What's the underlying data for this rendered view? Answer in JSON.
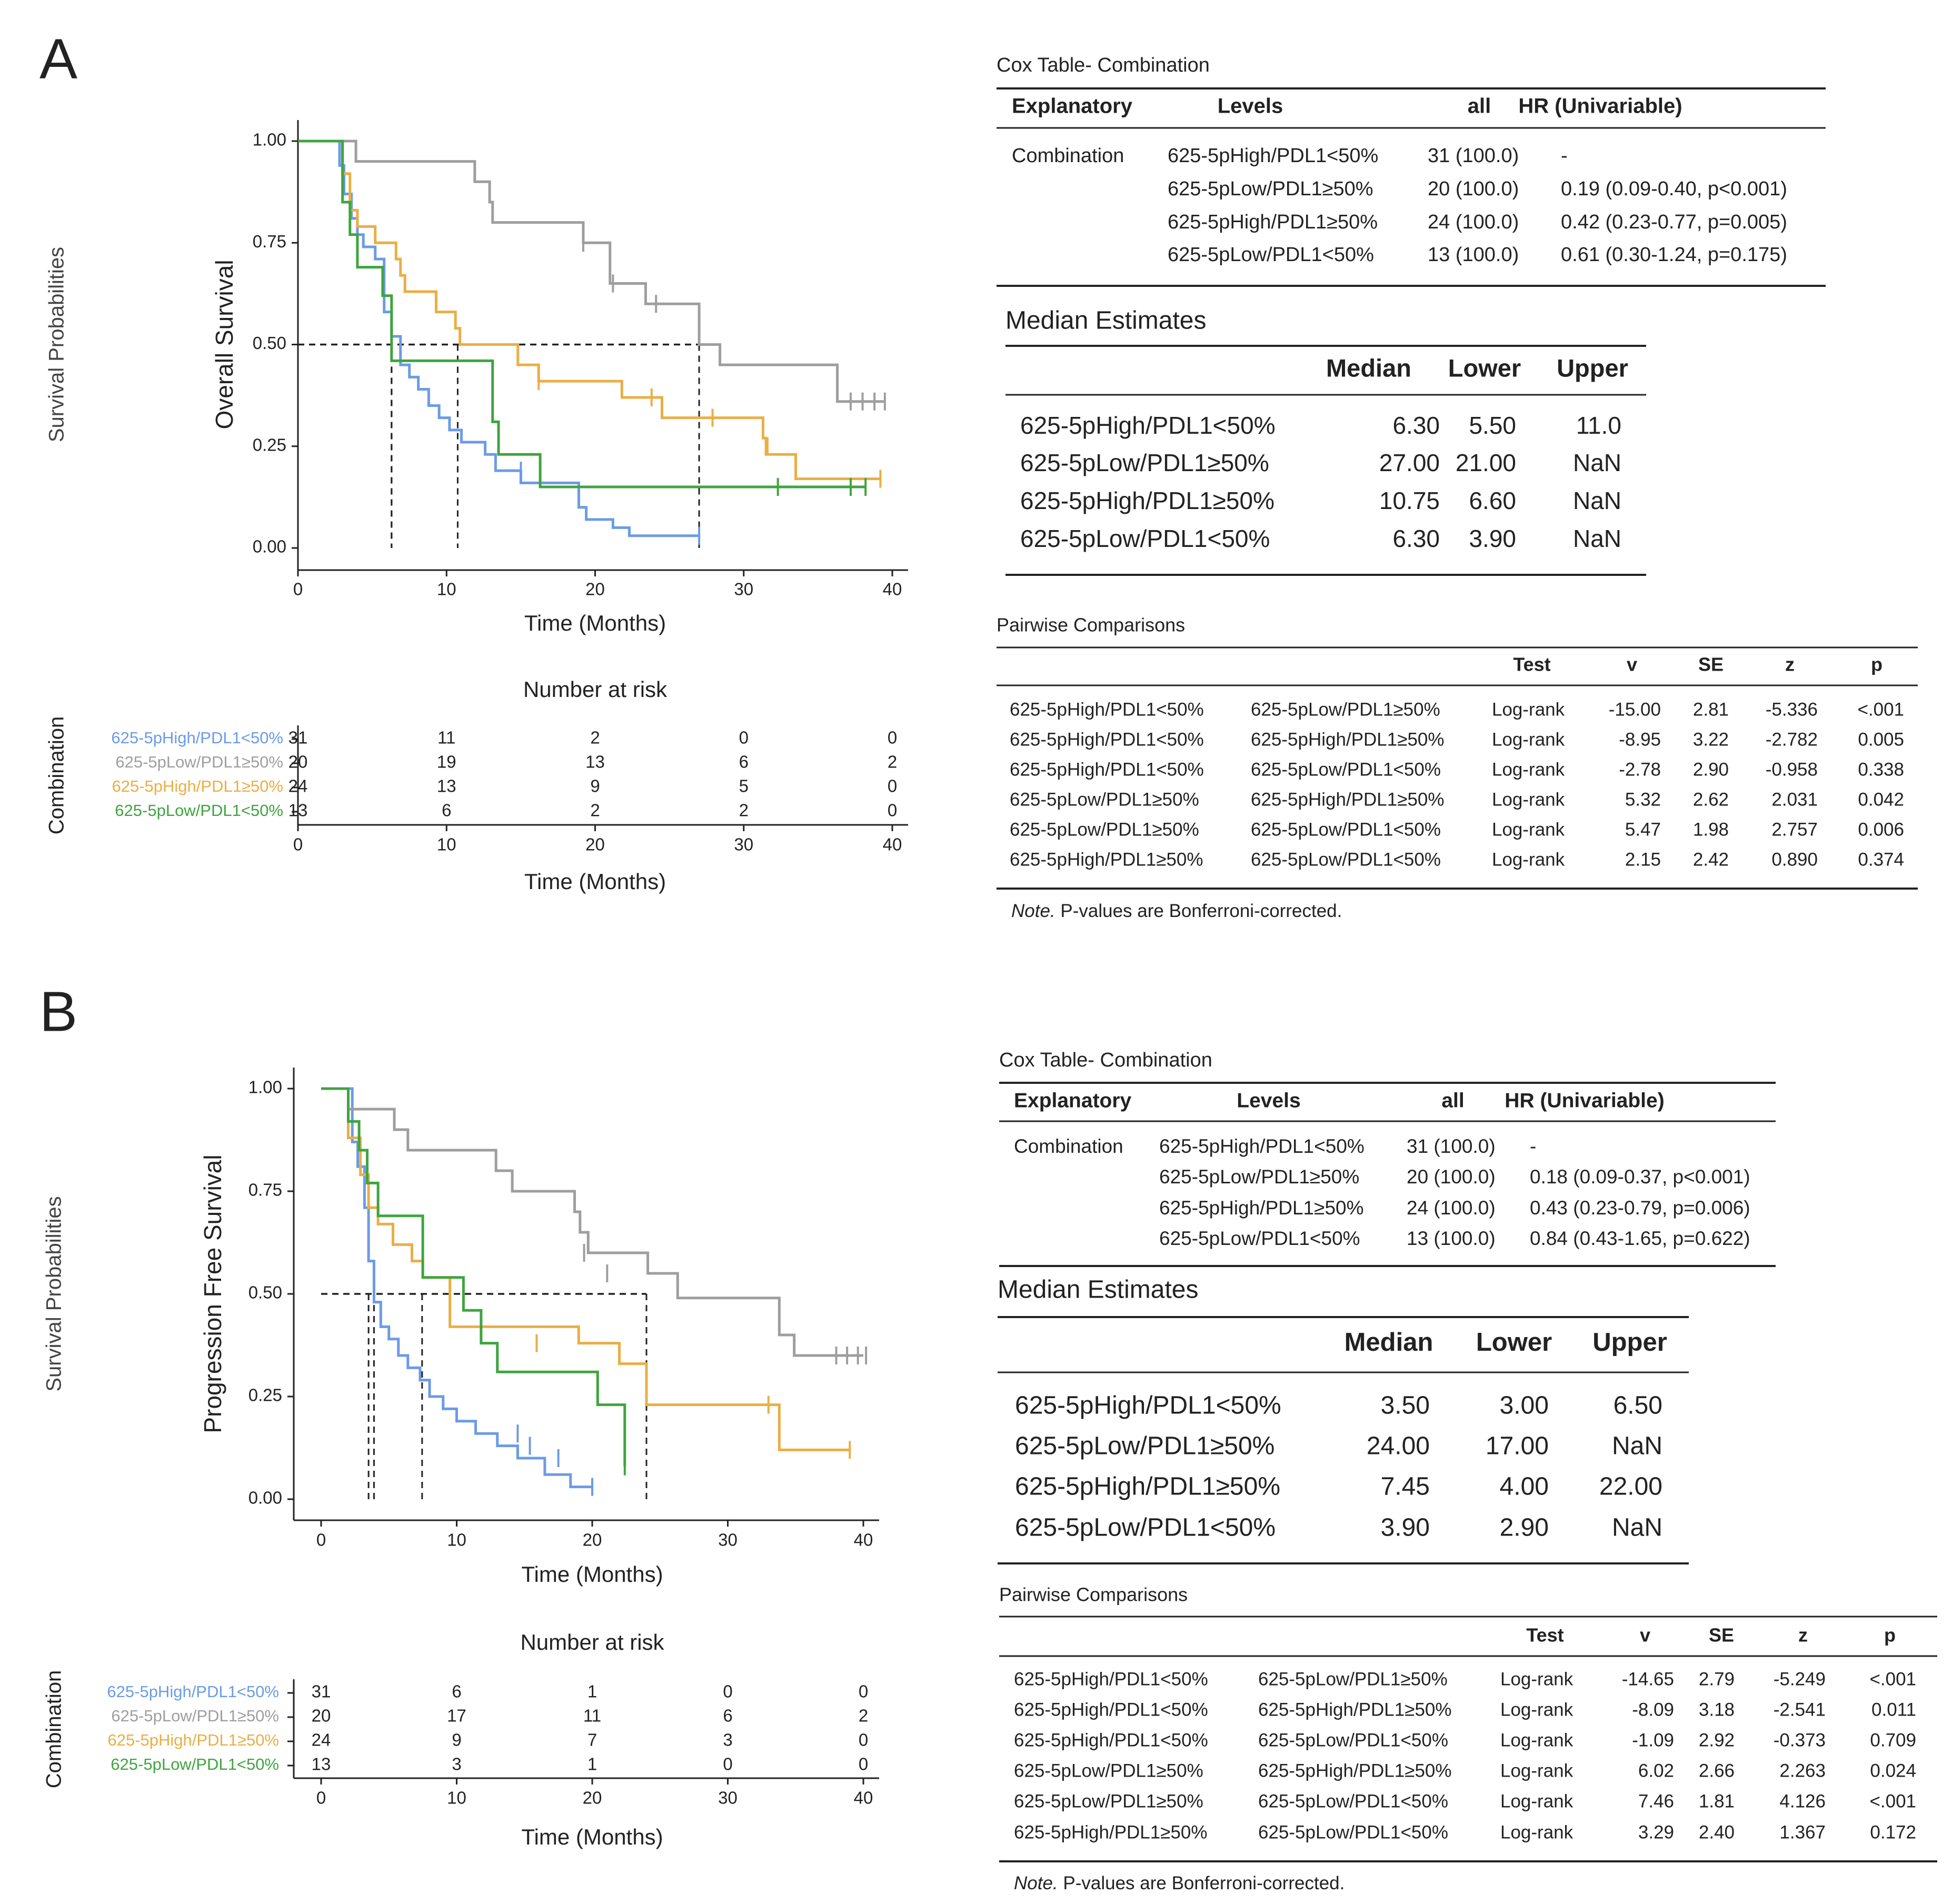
{
  "colors": {
    "g1": "#6b9be6",
    "g2": "#9e9e9e",
    "g3": "#eaae44",
    "g4": "#3fa43f",
    "axis": "#222222",
    "text": "#222222"
  },
  "chart_data": [
    {
      "type": "line",
      "panel": "A",
      "xlabel": "Time (Months)",
      "ylabel": "Overall Survival",
      "outer_ylabel": "Survival Probabilities",
      "xlim": [
        0,
        40
      ],
      "ylim": [
        0,
        1
      ],
      "x_ticks": [
        "0",
        "10",
        "20",
        "30",
        "40"
      ],
      "y_ticks": [
        "0.00",
        "0.25",
        "0.50",
        "0.75",
        "1.00"
      ],
      "medians": [
        6.3,
        27.0,
        10.75,
        6.3
      ],
      "series": [
        {
          "name": "625-5pHigh/PDL1<50%",
          "color_key": "g1",
          "x": [
            0,
            2.8,
            3.1,
            3.6,
            4,
            4.4,
            5.2,
            5.8,
            6.3,
            6.9,
            7.5,
            8.1,
            8.8,
            9.5,
            10.2,
            11,
            12.6,
            13.3,
            15,
            16.3,
            18.9,
            19.4,
            21.2,
            22.3,
            27
          ],
          "y": [
            1,
            0.94,
            0.87,
            0.81,
            0.77,
            0.74,
            0.71,
            0.58,
            0.52,
            0.45,
            0.42,
            0.39,
            0.35,
            0.32,
            0.29,
            0.26,
            0.23,
            0.19,
            0.16,
            0.16,
            0.1,
            0.07,
            0.05,
            0.03,
            0.03
          ],
          "censor_x": [
            15,
            27
          ],
          "censor_y": [
            0.19,
            0.03
          ]
        },
        {
          "name": "625-5pLow/PDL1≥50%",
          "color_key": "g2",
          "x": [
            0,
            3.9,
            11.9,
            12.9,
            13.1,
            14,
            19.2,
            21,
            23.4,
            27,
            28.4,
            36.3,
            39.5
          ],
          "y": [
            1,
            0.95,
            0.9,
            0.85,
            0.8,
            0.8,
            0.75,
            0.65,
            0.6,
            0.5,
            0.45,
            0.36,
            0.36
          ],
          "censor_x": [
            19.2,
            21.2,
            24.1,
            37.2,
            38.0,
            38.8,
            39.5
          ],
          "censor_y": [
            0.75,
            0.65,
            0.6,
            0.36,
            0.36,
            0.36,
            0.36
          ]
        },
        {
          "name": "625-5pHigh/PDL1≥50%",
          "color_key": "g3",
          "x": [
            0,
            3.0,
            3.5,
            4,
            5.2,
            6.6,
            6.9,
            7.2,
            9.3,
            10.6,
            10.9,
            14.8,
            16.2,
            21.8,
            24.5,
            27.1,
            31.3,
            31.5,
            33.5,
            39.2
          ],
          "y": [
            1,
            0.92,
            0.83,
            0.79,
            0.75,
            0.71,
            0.67,
            0.63,
            0.58,
            0.54,
            0.5,
            0.45,
            0.41,
            0.37,
            0.32,
            0.32,
            0.27,
            0.23,
            0.17,
            0.17
          ],
          "censor_x": [
            16.2,
            23.8,
            27.9,
            31.6,
            39.2
          ],
          "censor_y": [
            0.41,
            0.37,
            0.32,
            0.25,
            0.17
          ]
        },
        {
          "name": "625-5pLow/PDL1<50%",
          "color_key": "g4",
          "x": [
            0,
            3,
            3.5,
            4,
            5.7,
            6.3,
            10.6,
            13.1,
            13.5,
            16.3,
            32.3,
            38.2
          ],
          "y": [
            1,
            0.85,
            0.77,
            0.69,
            0.62,
            0.46,
            0.46,
            0.31,
            0.23,
            0.15,
            0.15,
            0.15
          ],
          "censor_x": [
            32.3,
            37.2,
            38.2
          ],
          "censor_y": [
            0.15,
            0.15,
            0.15
          ]
        }
      ],
      "risk_table": {
        "title": "Number at risk",
        "ylabel": "Combination",
        "xlabel": "Time (Months)",
        "groups": [
          "625-5pHigh/PDL1<50%",
          "625-5pLow/PDL1≥50%",
          "625-5pHigh/PDL1≥50%",
          "625-5pLow/PDL1<50%"
        ],
        "values": [
          [
            "31",
            "11",
            "2",
            "0",
            "0"
          ],
          [
            "20",
            "19",
            "13",
            "6",
            "2"
          ],
          [
            "24",
            "13",
            "9",
            "5",
            "0"
          ],
          [
            "13",
            "6",
            "2",
            "2",
            "0"
          ]
        ]
      }
    },
    {
      "type": "line",
      "panel": "B",
      "xlabel": "Time (Months)",
      "ylabel": "Progression Free Survival",
      "outer_ylabel": "Survival Probabilities",
      "xlim": [
        0,
        40
      ],
      "ylim": [
        0,
        1
      ],
      "x_ticks": [
        "0",
        "10",
        "20",
        "30",
        "40"
      ],
      "y_ticks": [
        "0.00",
        "0.25",
        "0.50",
        "0.75",
        "1.00"
      ],
      "medians": [
        3.5,
        24.0,
        7.45,
        3.9
      ],
      "series": [
        {
          "name": "625-5pHigh/PDL1<50%",
          "color_key": "g1",
          "x": [
            0,
            2.3,
            2.7,
            3.2,
            3.5,
            3.9,
            4.4,
            5,
            5.7,
            6.4,
            7.3,
            8,
            9,
            10,
            11.4,
            13,
            14.5,
            16.5,
            18.4,
            20
          ],
          "y": [
            1,
            0.87,
            0.81,
            0.71,
            0.58,
            0.48,
            0.42,
            0.39,
            0.35,
            0.32,
            0.29,
            0.25,
            0.22,
            0.19,
            0.16,
            0.13,
            0.1,
            0.06,
            0.03,
            0.03
          ],
          "censor_x": [
            14.5,
            15.4,
            17.5,
            20
          ],
          "censor_y": [
            0.16,
            0.13,
            0.1,
            0.03
          ]
        },
        {
          "name": "625-5pLow/PDL1≥50%",
          "color_key": "g2",
          "x": [
            0,
            2,
            5.4,
            6.4,
            12.9,
            14.1,
            18.7,
            19.1,
            19.7,
            24.1,
            26.3,
            33.8,
            34.9,
            40
          ],
          "y": [
            1,
            0.95,
            0.9,
            0.85,
            0.8,
            0.75,
            0.7,
            0.65,
            0.6,
            0.55,
            0.49,
            0.4,
            0.35,
            0.35
          ],
          "censor_x": [
            19.4,
            21.1,
            38.0,
            38.8,
            39.6,
            40.2
          ],
          "censor_y": [
            0.6,
            0.55,
            0.35,
            0.35,
            0.35,
            0.35
          ]
        },
        {
          "name": "625-5pHigh/PDL1≥50%",
          "color_key": "g3",
          "x": [
            0,
            2,
            2.9,
            3.5,
            4.2,
            5.3,
            6.7,
            7.5,
            9.5,
            19,
            22,
            24,
            33.8,
            39
          ],
          "y": [
            1,
            0.88,
            0.79,
            0.71,
            0.67,
            0.62,
            0.58,
            0.54,
            0.42,
            0.38,
            0.33,
            0.23,
            0.12,
            0.12
          ],
          "censor_x": [
            15.9,
            33,
            39
          ],
          "censor_y": [
            0.38,
            0.23,
            0.12
          ]
        },
        {
          "name": "625-5pLow/PDL1<50%",
          "color_key": "g4",
          "x": [
            0,
            2,
            2.8,
            3.4,
            4.2,
            7.5,
            10.5,
            11.8,
            13,
            20.4,
            22.4
          ],
          "y": [
            1,
            0.92,
            0.85,
            0.77,
            0.69,
            0.54,
            0.46,
            0.38,
            0.31,
            0.23,
            0.08
          ],
          "censor_x": [
            22.4
          ],
          "censor_y": [
            0.08
          ]
        }
      ],
      "risk_table": {
        "title": "Number at risk",
        "ylabel": "Combination",
        "xlabel": "Time (Months)",
        "groups": [
          "625-5pHigh/PDL1<50%",
          "625-5pLow/PDL1≥50%",
          "625-5pHigh/PDL1≥50%",
          "625-5pLow/PDL1<50%"
        ],
        "values": [
          [
            "31",
            "6",
            "1",
            "0",
            "0"
          ],
          [
            "20",
            "17",
            "11",
            "6",
            "2"
          ],
          [
            "24",
            "9",
            "7",
            "3",
            "0"
          ],
          [
            "13",
            "3",
            "1",
            "0",
            "0"
          ]
        ]
      }
    }
  ],
  "panels": [
    {
      "letter": "A",
      "cox": {
        "title": "Cox Table- Combination",
        "headers": [
          "Explanatory",
          "Levels",
          "all",
          "HR (Univariable)"
        ],
        "rows": [
          [
            "Combination",
            "625-5pHigh/PDL1<50%",
            "31 (100.0)",
            "-"
          ],
          [
            "",
            "625-5pLow/PDL1≥50%",
            "20 (100.0)",
            "0.19 (0.09-0.40, p<0.001)"
          ],
          [
            "",
            "625-5pHigh/PDL1≥50%",
            "24 (100.0)",
            "0.42 (0.23-0.77, p=0.005)"
          ],
          [
            "",
            "625-5pLow/PDL1<50%",
            "13 (100.0)",
            "0.61 (0.30-1.24, p=0.175)"
          ]
        ]
      },
      "median": {
        "title": "Median Estimates",
        "headers": [
          "",
          "Median",
          "Lower",
          "Upper"
        ],
        "rows": [
          [
            "625-5pHigh/PDL1<50%",
            "6.30",
            "5.50",
            "11.0"
          ],
          [
            "625-5pLow/PDL1≥50%",
            "27.00",
            "21.00",
            "NaN"
          ],
          [
            "625-5pHigh/PDL1≥50%",
            "10.75",
            "6.60",
            "NaN"
          ],
          [
            "625-5pLow/PDL1<50%",
            "6.30",
            "3.90",
            "NaN"
          ]
        ]
      },
      "pairwise": {
        "title": "Pairwise Comparisons",
        "headers": [
          "",
          "",
          "Test",
          "v",
          "SE",
          "z",
          "p"
        ],
        "rows": [
          [
            "625-5pHigh/PDL1<50%",
            "625-5pLow/PDL1≥50%",
            "Log-rank",
            "-15.00",
            "2.81",
            "-5.336",
            "<.001"
          ],
          [
            "625-5pHigh/PDL1<50%",
            "625-5pHigh/PDL1≥50%",
            "Log-rank",
            "-8.95",
            "3.22",
            "-2.782",
            "0.005"
          ],
          [
            "625-5pHigh/PDL1<50%",
            "625-5pLow/PDL1<50%",
            "Log-rank",
            "-2.78",
            "2.90",
            "-0.958",
            "0.338"
          ],
          [
            "625-5pLow/PDL1≥50%",
            "625-5pHigh/PDL1≥50%",
            "Log-rank",
            "5.32",
            "2.62",
            "2.031",
            "0.042"
          ],
          [
            "625-5pLow/PDL1≥50%",
            "625-5pLow/PDL1<50%",
            "Log-rank",
            "5.47",
            "1.98",
            "2.757",
            "0.006"
          ],
          [
            "625-5pHigh/PDL1≥50%",
            "625-5pLow/PDL1<50%",
            "Log-rank",
            "2.15",
            "2.42",
            "0.890",
            "0.374"
          ]
        ],
        "note_label": "Note.",
        "note_text": " P-values are Bonferroni-corrected."
      }
    },
    {
      "letter": "B",
      "cox": {
        "title": "Cox Table- Combination",
        "headers": [
          "Explanatory",
          "Levels",
          "all",
          "HR (Univariable)"
        ],
        "rows": [
          [
            "Combination",
            "625-5pHigh/PDL1<50%",
            "31 (100.0)",
            "-"
          ],
          [
            "",
            "625-5pLow/PDL1≥50%",
            "20 (100.0)",
            "0.18 (0.09-0.37, p<0.001)"
          ],
          [
            "",
            "625-5pHigh/PDL1≥50%",
            "24 (100.0)",
            "0.43 (0.23-0.79, p=0.006)"
          ],
          [
            "",
            "625-5pLow/PDL1<50%",
            "13 (100.0)",
            "0.84 (0.43-1.65, p=0.622)"
          ]
        ]
      },
      "median": {
        "title": "Median Estimates",
        "headers": [
          "",
          "Median",
          "Lower",
          "Upper"
        ],
        "rows": [
          [
            "625-5pHigh/PDL1<50%",
            "3.50",
            "3.00",
            "6.50"
          ],
          [
            "625-5pLow/PDL1≥50%",
            "24.00",
            "17.00",
            "NaN"
          ],
          [
            "625-5pHigh/PDL1≥50%",
            "7.45",
            "4.00",
            "22.00"
          ],
          [
            "625-5pLow/PDL1<50%",
            "3.90",
            "2.90",
            "NaN"
          ]
        ]
      },
      "pairwise": {
        "title": "Pairwise Comparisons",
        "headers": [
          "",
          "",
          "Test",
          "v",
          "SE",
          "z",
          "p"
        ],
        "rows": [
          [
            "625-5pHigh/PDL1<50%",
            "625-5pLow/PDL1≥50%",
            "Log-rank",
            "-14.65",
            "2.79",
            "-5.249",
            "<.001"
          ],
          [
            "625-5pHigh/PDL1<50%",
            "625-5pHigh/PDL1≥50%",
            "Log-rank",
            "-8.09",
            "3.18",
            "-2.541",
            "0.011"
          ],
          [
            "625-5pHigh/PDL1<50%",
            "625-5pLow/PDL1<50%",
            "Log-rank",
            "-1.09",
            "2.92",
            "-0.373",
            "0.709"
          ],
          [
            "625-5pLow/PDL1≥50%",
            "625-5pHigh/PDL1≥50%",
            "Log-rank",
            "6.02",
            "2.66",
            "2.263",
            "0.024"
          ],
          [
            "625-5pLow/PDL1≥50%",
            "625-5pLow/PDL1<50%",
            "Log-rank",
            "7.46",
            "1.81",
            "4.126",
            "<.001"
          ],
          [
            "625-5pHigh/PDL1≥50%",
            "625-5pLow/PDL1<50%",
            "Log-rank",
            "3.29",
            "2.40",
            "1.367",
            "0.172"
          ]
        ],
        "note_label": "Note.",
        "note_text": " P-values are Bonferroni-corrected."
      }
    }
  ]
}
